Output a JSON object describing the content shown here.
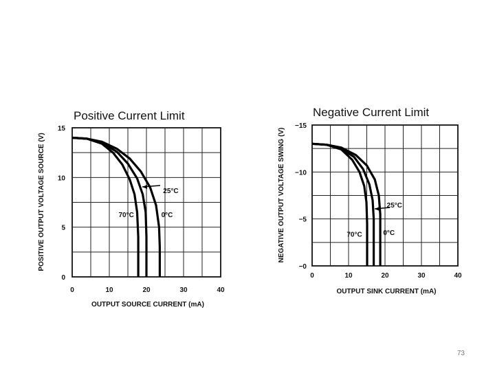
{
  "page": {
    "number": "73"
  },
  "chart_data": [
    {
      "type": "line",
      "title": "Positive Current Limit",
      "xlabel": "OUTPUT SOURCE CURRENT (mA)",
      "ylabel": "POSITIVE OUTPUT VOLTAGE SOURCE (V)",
      "xlim": [
        0,
        40
      ],
      "ylim": [
        0,
        15
      ],
      "x_ticks": [
        "0",
        "10",
        "20",
        "30",
        "40"
      ],
      "y_ticks": [
        "0",
        "5",
        "10",
        "15"
      ],
      "x_tick_values": [
        0,
        10,
        20,
        30,
        40
      ],
      "y_tick_values": [
        0,
        5,
        10,
        15
      ],
      "grid": true,
      "series": [
        {
          "name": "70°C",
          "points": [
            [
              0,
              14.0
            ],
            [
              4,
              13.9
            ],
            [
              8,
              13.4
            ],
            [
              11,
              12.5
            ],
            [
              13.5,
              11.3
            ],
            [
              15.5,
              9.8
            ],
            [
              16.8,
              8.3
            ],
            [
              17.5,
              6.5
            ],
            [
              17.8,
              4
            ],
            [
              17.8,
              0
            ]
          ]
        },
        {
          "name": "25°C",
          "points": [
            [
              0,
              14.0
            ],
            [
              4,
              13.9
            ],
            [
              8,
              13.5
            ],
            [
              12,
              12.6
            ],
            [
              15,
              11.4
            ],
            [
              17.5,
              9.9
            ],
            [
              19,
              8.3
            ],
            [
              19.8,
              6.5
            ],
            [
              20,
              4
            ],
            [
              20,
              0
            ]
          ]
        },
        {
          "name": "0°C",
          "points": [
            [
              0,
              14.0
            ],
            [
              4,
              13.9
            ],
            [
              8,
              13.6
            ],
            [
              12,
              12.9
            ],
            [
              15.5,
              11.9
            ],
            [
              18.5,
              10.6
            ],
            [
              21,
              9.0
            ],
            [
              22.6,
              7.2
            ],
            [
              23.4,
              5
            ],
            [
              23.6,
              3
            ],
            [
              23.6,
              0
            ]
          ]
        }
      ],
      "annotations": [
        {
          "text": "25°C",
          "x": 24.5,
          "y": 8.7
        },
        {
          "text": "70°C",
          "x": 12.5,
          "y": 6.3
        },
        {
          "text": "0°C",
          "x": 24,
          "y": 6.3
        }
      ]
    },
    {
      "type": "line",
      "title": "Negative Current Limit",
      "xlabel": "OUTPUT SINK CURRENT (mA)",
      "ylabel": "NEGATIVE OUTPUT VOLTAGE SWING (V)",
      "xlim": [
        0,
        40
      ],
      "ylim": [
        0,
        -15
      ],
      "x_ticks": [
        "0",
        "10",
        "20",
        "30",
        "40"
      ],
      "y_ticks": [
        "−0",
        "−5",
        "−10",
        "−15"
      ],
      "x_tick_values": [
        0,
        10,
        20,
        30,
        40
      ],
      "y_tick_values": [
        0,
        -5,
        -10,
        -15
      ],
      "grid": true,
      "series": [
        {
          "name": "70°C",
          "points": [
            [
              0,
              -13.0
            ],
            [
              4,
              -12.9
            ],
            [
              8,
              -12.4
            ],
            [
              11,
              -11.3
            ],
            [
              13,
              -10.0
            ],
            [
              14.3,
              -8.5
            ],
            [
              14.9,
              -6.8
            ],
            [
              15.1,
              -4.5
            ],
            [
              15.1,
              0
            ]
          ]
        },
        {
          "name": "25°C",
          "points": [
            [
              0,
              -13.0
            ],
            [
              4,
              -12.9
            ],
            [
              8,
              -12.5
            ],
            [
              11.5,
              -11.6
            ],
            [
              14,
              -10.3
            ],
            [
              15.7,
              -8.7
            ],
            [
              16.6,
              -7.0
            ],
            [
              16.9,
              -5.0
            ],
            [
              16.9,
              0
            ]
          ]
        },
        {
          "name": "0°C",
          "points": [
            [
              0,
              -13.0
            ],
            [
              4,
              -12.9
            ],
            [
              8,
              -12.6
            ],
            [
              12,
              -11.8
            ],
            [
              15,
              -10.7
            ],
            [
              17.2,
              -9.2
            ],
            [
              18.3,
              -7.5
            ],
            [
              18.7,
              -5.5
            ],
            [
              18.7,
              0
            ]
          ]
        }
      ],
      "annotations": [
        {
          "text": "25°C",
          "x": 20.5,
          "y": -6.5
        },
        {
          "text": "70°C",
          "x": 9.5,
          "y": -3.4
        },
        {
          "text": "0°C",
          "x": 19.5,
          "y": -3.6
        }
      ]
    }
  ]
}
